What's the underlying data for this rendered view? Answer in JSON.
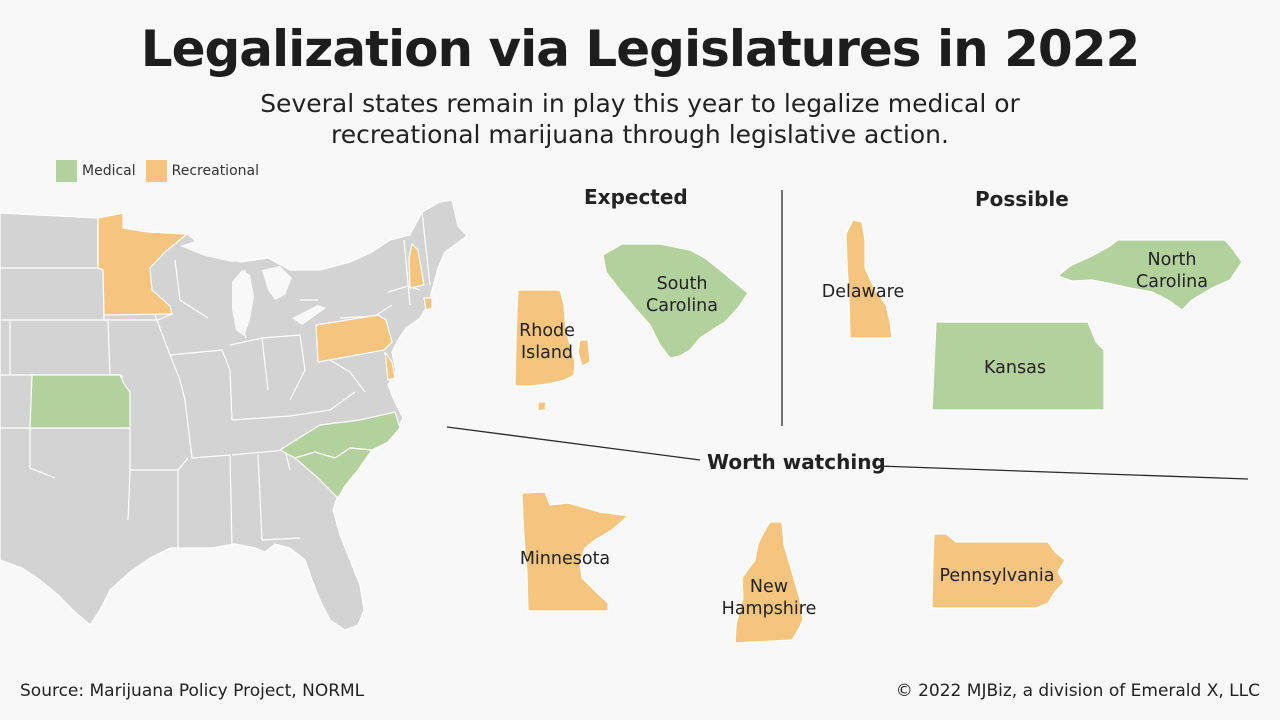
{
  "header": {
    "title": "Legalization via Legislatures in 2022",
    "subtitle_line1": "Several states remain in play this year to legalize medical or",
    "subtitle_line2": "recreational marijuana through legislative action."
  },
  "legend": {
    "items": [
      {
        "label": "Medical",
        "color": "#b3d19c"
      },
      {
        "label": "Recreational",
        "color": "#f5c47e"
      }
    ]
  },
  "colors": {
    "medical": "#b3d19c",
    "recreational": "#f5c47e",
    "other_state": "#d3d3d3",
    "background": "#f8f8f8"
  },
  "sections": {
    "expected": "Expected",
    "possible": "Possible",
    "worth_watching": "Worth watching"
  },
  "states": {
    "rhode_island": {
      "line1": "Rhode",
      "line2": "Island",
      "category": "recreational"
    },
    "south_carolina": {
      "line1": "South",
      "line2": "Carolina",
      "category": "medical"
    },
    "delaware": {
      "line1": "Delaware",
      "category": "recreational"
    },
    "north_carolina": {
      "line1": "North",
      "line2": "Carolina",
      "category": "medical"
    },
    "kansas": {
      "line1": "Kansas",
      "category": "medical"
    },
    "minnesota": {
      "line1": "Minnesota",
      "category": "recreational"
    },
    "new_hampshire": {
      "line1": "New",
      "line2": "Hampshire",
      "category": "recreational"
    },
    "pennsylvania": {
      "line1": "Pennsylvania",
      "category": "recreational"
    }
  },
  "footer": {
    "source": "Source: Marijuana Policy Project, NORML",
    "copyright": "© 2022 MJBiz, a division of Emerald X, LLC"
  }
}
